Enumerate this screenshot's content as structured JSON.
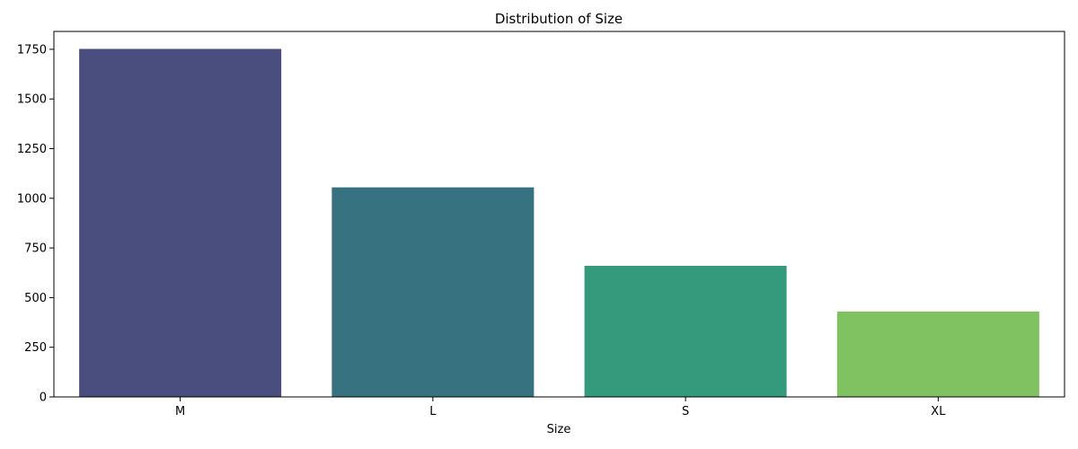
{
  "chart_data": {
    "type": "bar",
    "title": "Distribution of Size",
    "xlabel": "Size",
    "ylabel": "",
    "categories": [
      "M",
      "L",
      "S",
      "XL"
    ],
    "values": [
      1752,
      1055,
      660,
      430
    ],
    "ylim": [
      0,
      1840
    ],
    "yticks": [
      0,
      250,
      500,
      750,
      1000,
      1250,
      1500,
      1750
    ],
    "colors": [
      "#4A4E7E",
      "#377281",
      "#35997B",
      "#80C262"
    ],
    "grid": false,
    "legend": "none"
  }
}
